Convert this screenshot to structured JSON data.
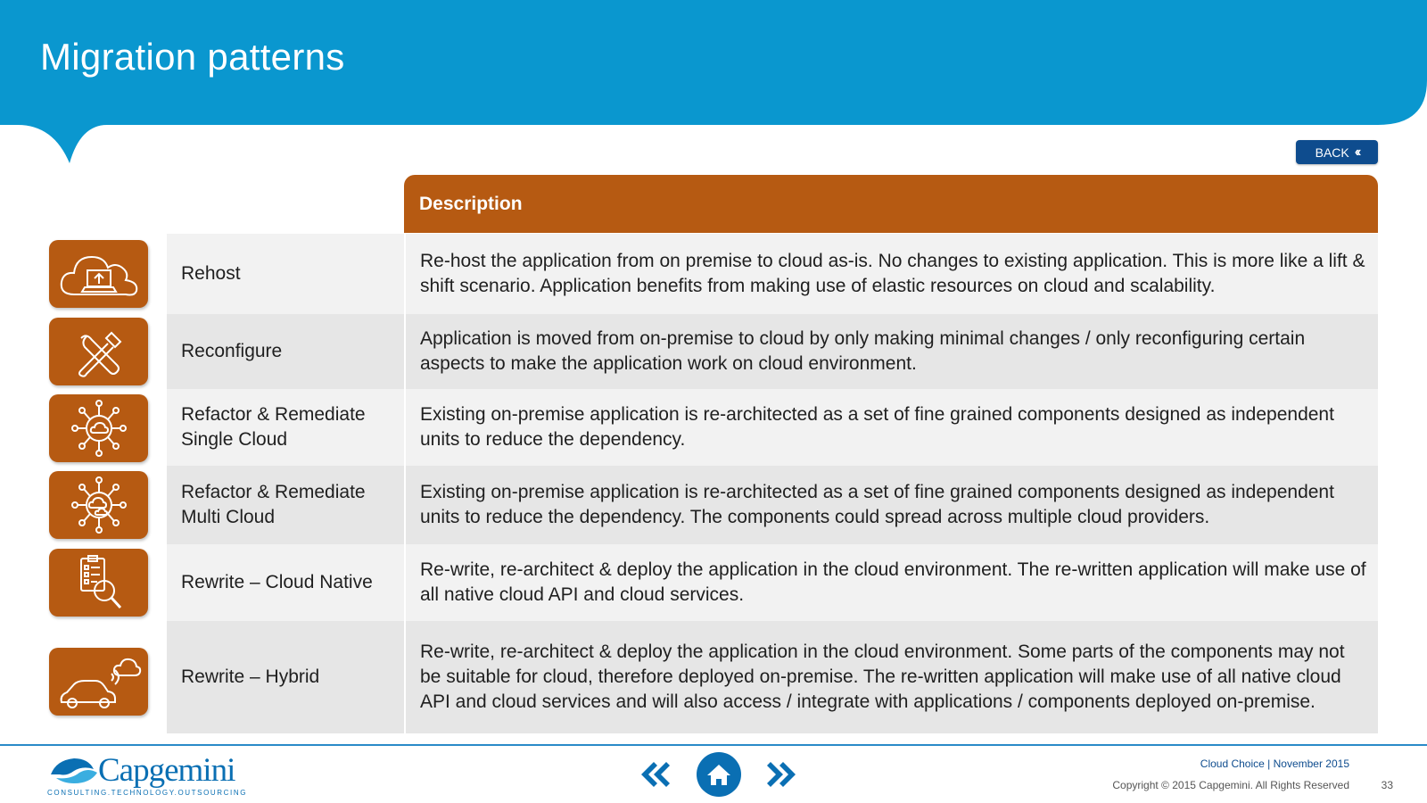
{
  "header": {
    "title": "Migration patterns"
  },
  "back_button": {
    "label": "BACK"
  },
  "table": {
    "column_header": "Description",
    "rows": [
      {
        "name": "Rehost",
        "icon": "cloud-upload-laptop-icon",
        "description": "Re-host the application from on premise to cloud as-is. No changes to existing application. This is more like a lift & shift scenario. Application benefits from making use of elastic resources on cloud and scalability."
      },
      {
        "name": "Reconfigure",
        "icon": "tools-icon",
        "description": "Application is moved from on-premise to cloud by only making minimal changes / only reconfiguring certain aspects to make the application work on cloud environment."
      },
      {
        "name": "Refactor & Remediate Single Cloud",
        "icon": "cloud-network-icon",
        "description": "Existing on-premise application is re-architected as a set of fine grained components designed as independent units to reduce the dependency."
      },
      {
        "name": "Refactor & Remediate Multi Cloud",
        "icon": "multi-cloud-network-icon",
        "description": "Existing on-premise application is re-architected as a set of fine grained components designed as independent units to reduce the dependency. The components could spread across multiple cloud providers."
      },
      {
        "name": "Rewrite – Cloud Native",
        "icon": "checklist-search-icon",
        "description": "Re-write, re-architect & deploy the application in the cloud environment. The re-written application will make use of all native cloud API and cloud services."
      },
      {
        "name": "Rewrite – Hybrid",
        "icon": "car-cloud-icon",
        "description": "Re-write, re-architect & deploy the application in the cloud environment. Some parts of the components may not be suitable for cloud, therefore deployed on-premise. The re-written application will make use of all native cloud API and cloud services and will also access / integrate with applications / components deployed on-premise."
      }
    ]
  },
  "footer": {
    "logo_text": "Capgemini",
    "logo_tagline": "CONSULTING.TECHNOLOGY.OUTSOURCING",
    "info": "Cloud Choice | November 2015",
    "copyright": "Copyright © 2015 Capgemini. All Rights Reserved",
    "page_number": "33"
  },
  "colors": {
    "banner": "#0a97cf",
    "accent": "#b65a12",
    "navy": "#0e4c8e"
  }
}
